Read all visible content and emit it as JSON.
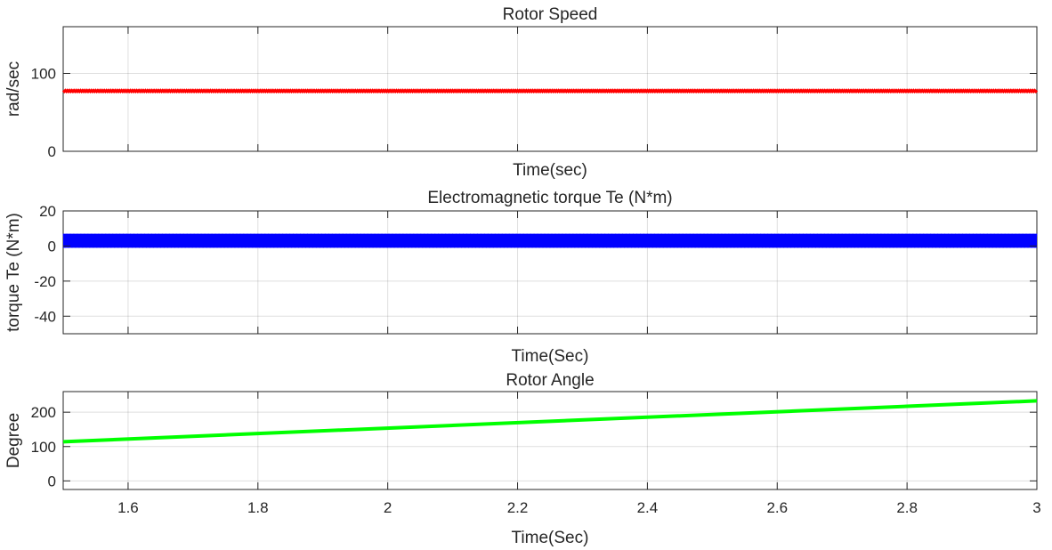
{
  "chart_data": [
    {
      "type": "line",
      "title": "Rotor Speed",
      "xlabel": "Time(sec)",
      "ylabel": "rad/sec",
      "xlim": [
        1.5,
        3
      ],
      "ylim": [
        0,
        160
      ],
      "xticks": [
        1.6,
        1.8,
        2,
        2.2,
        2.4,
        2.6,
        2.8
      ],
      "xtick_labels": [],
      "yticks": [
        0,
        100
      ],
      "ytick_labels": [
        "0",
        "100"
      ],
      "grid": true,
      "series": [
        {
          "color": "#ff0000",
          "x": [
            1.5,
            3
          ],
          "y": [
            77.5,
            77.5
          ],
          "noise": 0.8
        }
      ]
    },
    {
      "type": "line",
      "title": "Electromagnetic torque Te (N*m)",
      "xlabel": "Time(Sec)",
      "ylabel": "torque Te (N*m)",
      "xlim": [
        1.5,
        3
      ],
      "ylim": [
        -50,
        20
      ],
      "xticks": [
        1.6,
        1.8,
        2,
        2.2,
        2.4,
        2.6,
        2.8
      ],
      "xtick_labels": [],
      "yticks": [
        -40,
        -20,
        0,
        20
      ],
      "ytick_labels": [
        "-40",
        "-20",
        "0",
        "20"
      ],
      "grid": true,
      "series": [
        {
          "color": "#0000ff",
          "x": [
            1.5,
            3
          ],
          "y": [
            3,
            3
          ],
          "band": [
            -1,
            7
          ]
        }
      ]
    },
    {
      "type": "line",
      "title": "Rotor Angle",
      "xlabel": "Time(Sec)",
      "ylabel": "Degree",
      "xlim": [
        1.5,
        3
      ],
      "ylim": [
        -25,
        260
      ],
      "xticks": [
        1.6,
        1.8,
        2,
        2.2,
        2.4,
        2.6,
        2.8,
        3
      ],
      "xtick_labels": [
        "1.6",
        "1.8",
        "2",
        "2.2",
        "2.4",
        "2.6",
        "2.8",
        "3"
      ],
      "yticks": [
        0,
        100,
        200
      ],
      "ytick_labels": [
        "0",
        "100",
        "200"
      ],
      "grid": true,
      "series": [
        {
          "color": "#00ff00",
          "x": [
            1.5,
            3
          ],
          "y": [
            114,
            233
          ]
        }
      ]
    }
  ]
}
